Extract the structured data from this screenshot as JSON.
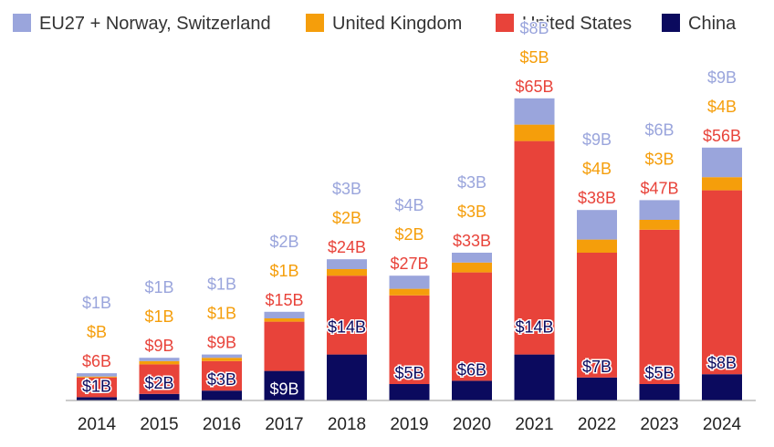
{
  "chart_data": {
    "type": "bar",
    "stacked": true,
    "categories": [
      "2014",
      "2015",
      "2016",
      "2017",
      "2018",
      "2019",
      "2020",
      "2021",
      "2022",
      "2023",
      "2024"
    ],
    "series": [
      {
        "name": "China",
        "color": "#0b0a5e",
        "values": [
          1,
          2,
          3,
          9,
          14,
          5,
          6,
          14,
          7,
          5,
          8
        ],
        "labels": [
          "$1B",
          "$2B",
          "$3B",
          "$9B",
          "$14B",
          "$5B",
          "$6B",
          "$14B",
          "$7B",
          "$5B",
          "$8B"
        ]
      },
      {
        "name": "United States",
        "color": "#e8433a",
        "values": [
          6,
          9,
          9,
          15,
          24,
          27,
          33,
          65,
          38,
          47,
          56
        ],
        "labels": [
          "$6B",
          "$9B",
          "$9B",
          "$15B",
          "$24B",
          "$27B",
          "$33B",
          "$65B",
          "$38B",
          "$47B",
          "$56B"
        ]
      },
      {
        "name": "United Kingdom",
        "color": "#f59e0b",
        "values": [
          0.3,
          1,
          1,
          1,
          2,
          2,
          3,
          5,
          4,
          3,
          4
        ],
        "labels": [
          "$B",
          "$1B",
          "$1B",
          "$1B",
          "$2B",
          "$2B",
          "$3B",
          "$5B",
          "$4B",
          "$3B",
          "$4B"
        ]
      },
      {
        "name": "EU27 + Norway, Switzerland",
        "color": "#9aa5dc",
        "values": [
          1,
          1,
          1,
          2,
          3,
          4,
          3,
          8,
          9,
          6,
          9
        ],
        "labels": [
          "$1B",
          "$1B",
          "$1B",
          "$2B",
          "$3B",
          "$4B",
          "$3B",
          "$8B",
          "$9B",
          "$6B",
          "$9B"
        ]
      }
    ],
    "legend_order": [
      "EU27 + Norway, Switzerland",
      "United Kingdom",
      "United States",
      "China"
    ],
    "legend_position": "top",
    "grid": false,
    "ylim": [
      0,
      95
    ]
  }
}
